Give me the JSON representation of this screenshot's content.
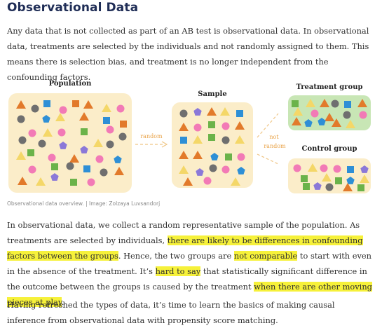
{
  "title": "Observational Data",
  "intro": "Any data that is not collected as part of an AB test is observational data. In observational data, treatments are selected by the individuals and not randomly assigned to them. This means there is selection bias, and treatment is no longer independent from the confounding factors.",
  "diagram": {
    "population_label": "Population",
    "sample_label": "Sample",
    "treatment_label": "Treatment group",
    "control_label": "Control group",
    "random_label": "random",
    "not_random_line1": "not",
    "not_random_line2": "random",
    "colors": {
      "orange": "#e27a2b",
      "pink": "#f27ab6",
      "gray": "#6f6f6f",
      "blue": "#2e8fd6",
      "yellow": "#f4d768",
      "green": "#6bb34a",
      "purple": "#8b78d8"
    }
  },
  "caption": "Observational data overview. | Image: Zolzaya Luvsandorj",
  "p2": [
    "In observational data, we collect a random representative sample of the population. As treatments are selected by individuals, ",
    "there are likely to be differences in confounding factors between the groups",
    ". Hence, the two groups are ",
    "not comparable",
    " to start with even in the absence of the treatment. It’s ",
    "hard to say",
    " that statistically significant difference in the outcome between the groups is caused by the treatment ",
    "when there are other moving pieces at play",
    "."
  ],
  "p3": "Having refreshed the types of data, it’s time to learn the basics of making causal inference from observational data with propensity score matching."
}
